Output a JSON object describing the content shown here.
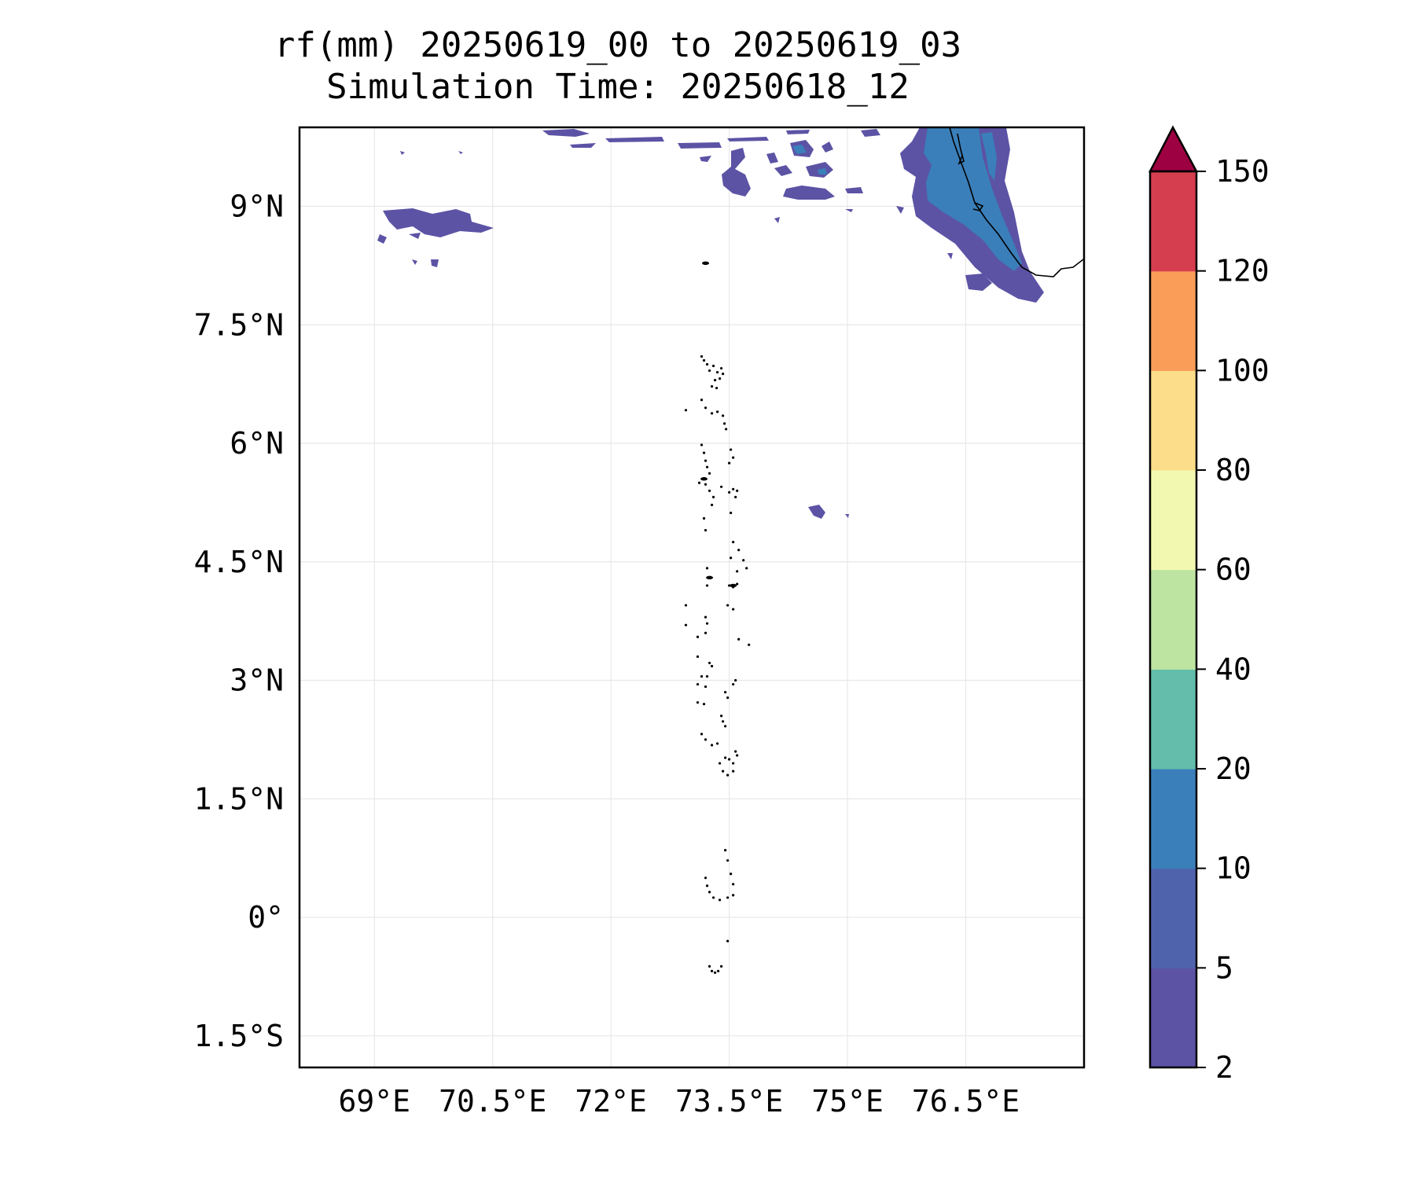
{
  "title": {
    "line1": "rf(mm) 20250619_00 to 20250619_03",
    "line2": "Simulation Time: 20250618_12"
  },
  "map": {
    "lon_range": [
      68.05,
      78.0
    ],
    "lat_range": [
      -1.9,
      10.0
    ],
    "x_ticks": [
      {
        "value": 69.0,
        "label": "69°E"
      },
      {
        "value": 70.5,
        "label": "70.5°E"
      },
      {
        "value": 72.0,
        "label": "72°E"
      },
      {
        "value": 73.5,
        "label": "73.5°E"
      },
      {
        "value": 75.0,
        "label": "75°E"
      },
      {
        "value": 76.5,
        "label": "76.5°E"
      }
    ],
    "y_ticks": [
      {
        "value": 9.0,
        "label": "9°N"
      },
      {
        "value": 7.5,
        "label": "7.5°N"
      },
      {
        "value": 6.0,
        "label": "6°N"
      },
      {
        "value": 4.5,
        "label": "4.5°N"
      },
      {
        "value": 3.0,
        "label": "3°N"
      },
      {
        "value": 1.5,
        "label": "1.5°N"
      },
      {
        "value": 0.0,
        "label": "0°"
      },
      {
        "value": -1.5,
        "label": "1.5°S"
      }
    ],
    "grid": true
  },
  "colorbar": {
    "levels": [
      "2",
      "5",
      "10",
      "20",
      "40",
      "60",
      "80",
      "100",
      "120",
      "150"
    ],
    "colors": [
      "#5c53a5",
      "#4f63ad",
      "#3a7fba",
      "#63bdaa",
      "#bde4a0",
      "#f2f8b0",
      "#fbdd8a",
      "#f99d59",
      "#d53e4f"
    ],
    "extend_color": "#9e0142",
    "extend": "max"
  },
  "rain_colors": {
    "light": "#5c53a5",
    "moderate": "#4f63ad",
    "heavy": "#3a7fba"
  }
}
